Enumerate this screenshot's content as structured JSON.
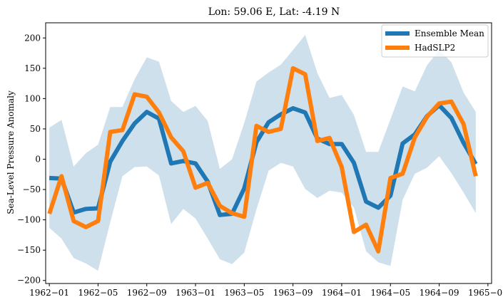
{
  "chart_data": {
    "type": "line",
    "title": "Lon: 59.06 E, Lat: -4.19 N",
    "xlabel": "",
    "ylabel": "Sea-Level Pressure Anomaly",
    "ylim": [
      -205,
      225
    ],
    "xlim": [
      -0.3,
      36.3
    ],
    "x_start": "1962-01",
    "xticks": [
      0,
      4,
      8,
      12,
      16,
      20,
      24,
      28,
      32,
      36
    ],
    "xtick_labels": [
      "1962−01",
      "1962−05",
      "1962−09",
      "1963−01",
      "1963−05",
      "1963−09",
      "1964−01",
      "1964−05",
      "1964−09",
      "1965−01"
    ],
    "yticks": [
      -200,
      -150,
      -100,
      -50,
      0,
      50,
      100,
      150,
      200
    ],
    "ytick_labels": [
      "−200",
      "−150",
      "−100",
      "−50",
      "0",
      "50",
      "100",
      "150",
      "200"
    ],
    "legend_position": "upper right",
    "band": {
      "name": "Ensemble spread",
      "color": "#cfe0ed",
      "upper": [
        52,
        65,
        -12,
        10,
        24,
        86,
        86,
        132,
        168,
        161,
        96,
        78,
        88,
        63,
        -16,
        0,
        60,
        128,
        143,
        156,
        180,
        205,
        142,
        101,
        106,
        73,
        12,
        12,
        66,
        120,
        112,
        155,
        180,
        160,
        110,
        78
      ],
      "lower": [
        -113,
        -131,
        -163,
        -172,
        -184,
        -104,
        -28,
        -13,
        -12,
        -27,
        -107,
        -82,
        -98,
        -131,
        -165,
        -173,
        -154,
        -83,
        -19,
        -6,
        -12,
        -49,
        -64,
        -52,
        -55,
        -80,
        -152,
        -170,
        -176,
        -67,
        -24,
        -14,
        5,
        -23,
        -55,
        -89
      ]
    },
    "series": [
      {
        "name": "Ensemble Mean",
        "color": "#1f77b4",
        "values": [
          -31,
          -32,
          -88,
          -82,
          -81,
          -4,
          30,
          59,
          78,
          67,
          -7,
          -3,
          -7,
          -37,
          -92,
          -90,
          -48,
          28,
          61,
          74,
          84,
          77,
          34,
          25,
          25,
          -6,
          -70,
          -80,
          -60,
          26,
          41,
          71,
          89,
          68,
          27,
          -8
        ]
      },
      {
        "name": "HadSLP2",
        "color": "#ff7f0e",
        "values": [
          -90,
          -28,
          -102,
          -112,
          -102,
          45,
          48,
          107,
          103,
          77,
          36,
          13,
          -47,
          -39,
          -77,
          -89,
          -95,
          55,
          45,
          50,
          150,
          140,
          30,
          35,
          -13,
          -120,
          -108,
          -152,
          -31,
          -24,
          36,
          70,
          92,
          95,
          58,
          -28
        ]
      }
    ]
  }
}
